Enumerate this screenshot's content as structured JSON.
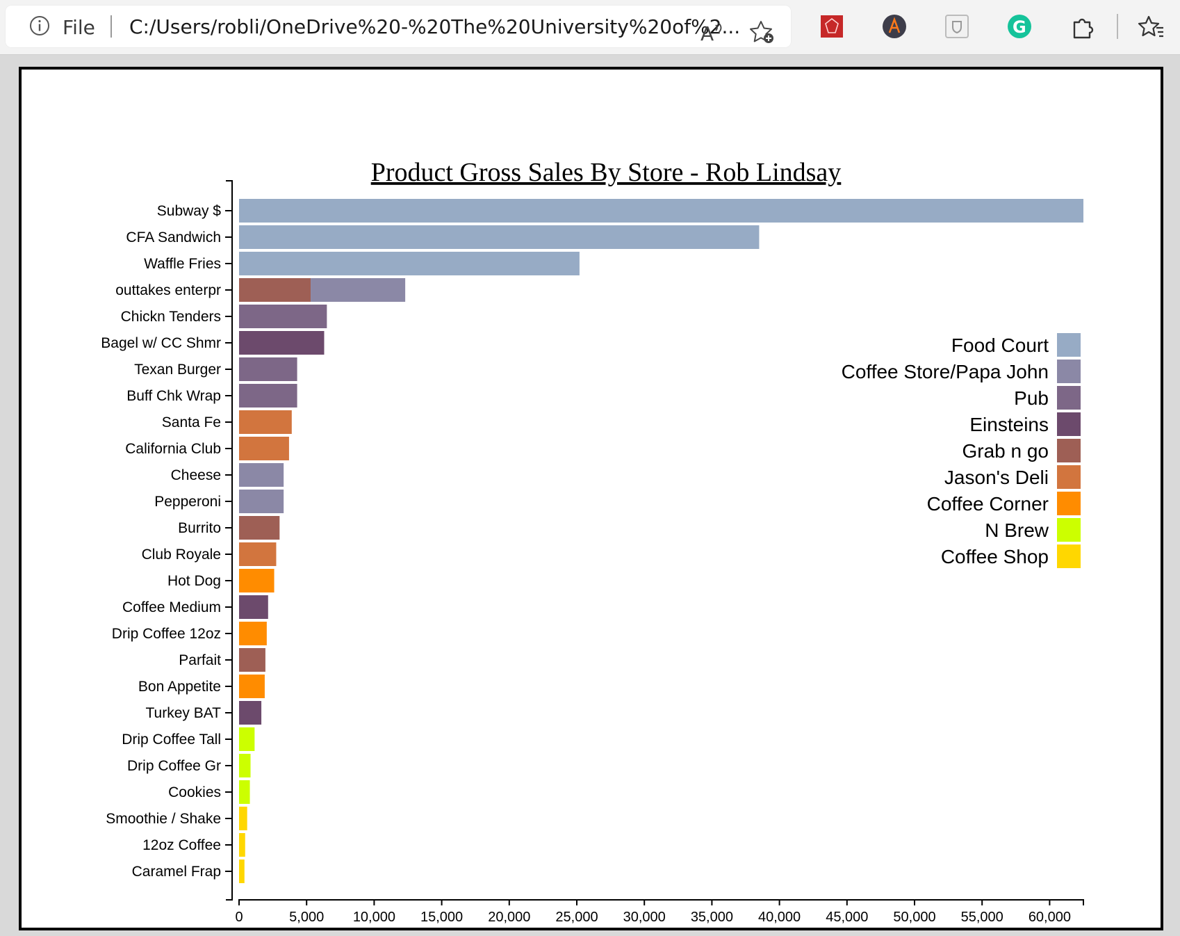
{
  "browser": {
    "file_label": "File",
    "url": "C:/Users/robli/OneDrive%20-%20The%20University%20of%2..."
  },
  "chart_data": {
    "type": "bar",
    "orientation": "horizontal",
    "stacked": true,
    "title": "Product Gross Sales By Store - Rob Lindsay",
    "xlabel": "",
    "ylabel": "",
    "xlim": [
      0,
      62500
    ],
    "xticks": [
      "0",
      "5,000",
      "10,000",
      "15,000",
      "20,000",
      "25,000",
      "30,000",
      "35,000",
      "40,000",
      "45,000",
      "50,000",
      "55,000",
      "60,000"
    ],
    "grid": false,
    "legend_position": "right",
    "legend": [
      {
        "name": "Food Court",
        "color": "#97abc5"
      },
      {
        "name": "Coffee Store/Papa John",
        "color": "#8b88a6"
      },
      {
        "name": "Pub",
        "color": "#7d6787"
      },
      {
        "name": "Einsteins",
        "color": "#6c4a6c"
      },
      {
        "name": "Grab n go",
        "color": "#9e5f55"
      },
      {
        "name": "Jason's Deli",
        "color": "#d2753e"
      },
      {
        "name": "Coffee Corner",
        "color": "#ff8c00"
      },
      {
        "name": "N Brew",
        "color": "#ccff00"
      },
      {
        "name": "Coffee Shop",
        "color": "#ffd700"
      }
    ],
    "bars": [
      {
        "label": "Subway $",
        "segments": [
          {
            "store": "Food Court",
            "value": 62500
          }
        ]
      },
      {
        "label": "CFA Sandwich",
        "segments": [
          {
            "store": "Food Court",
            "value": 38500
          }
        ]
      },
      {
        "label": "Waffle Fries",
        "segments": [
          {
            "store": "Food Court",
            "value": 25200
          }
        ]
      },
      {
        "label": "outtakes enterpr",
        "segments": [
          {
            "store": "Grab n go",
            "value": 5300
          },
          {
            "store": "Coffee Store/Papa John",
            "value": 7000
          }
        ]
      },
      {
        "label": "Chickn Tenders",
        "segments": [
          {
            "store": "Pub",
            "value": 6500
          }
        ]
      },
      {
        "label": "Bagel w/ CC Shmr",
        "segments": [
          {
            "store": "Einsteins",
            "value": 6300
          }
        ]
      },
      {
        "label": "Texan Burger",
        "segments": [
          {
            "store": "Pub",
            "value": 4300
          }
        ]
      },
      {
        "label": "Buff Chk Wrap",
        "segments": [
          {
            "store": "Pub",
            "value": 4300
          }
        ]
      },
      {
        "label": "Santa Fe",
        "segments": [
          {
            "store": "Jason's Deli",
            "value": 3900
          }
        ]
      },
      {
        "label": "California Club",
        "segments": [
          {
            "store": "Jason's Deli",
            "value": 3700
          }
        ]
      },
      {
        "label": "Cheese",
        "segments": [
          {
            "store": "Coffee Store/Papa John",
            "value": 3300
          }
        ]
      },
      {
        "label": "Pepperoni",
        "segments": [
          {
            "store": "Coffee Store/Papa John",
            "value": 3300
          }
        ]
      },
      {
        "label": "Burrito",
        "segments": [
          {
            "store": "Grab n go",
            "value": 3000
          }
        ]
      },
      {
        "label": "Club Royale",
        "segments": [
          {
            "store": "Jason's Deli",
            "value": 2750
          }
        ]
      },
      {
        "label": "Hot Dog",
        "segments": [
          {
            "store": "Coffee Corner",
            "value": 2600
          }
        ]
      },
      {
        "label": "Coffee Medium",
        "segments": [
          {
            "store": "Einsteins",
            "value": 2150
          }
        ]
      },
      {
        "label": "Drip Coffee 12oz",
        "segments": [
          {
            "store": "Coffee Corner",
            "value": 2050
          }
        ]
      },
      {
        "label": "Parfait",
        "segments": [
          {
            "store": "Grab n go",
            "value": 1950
          }
        ]
      },
      {
        "label": "Bon Appetite",
        "segments": [
          {
            "store": "Coffee Corner",
            "value": 1900
          }
        ]
      },
      {
        "label": "Turkey BAT",
        "segments": [
          {
            "store": "Einsteins",
            "value": 1650
          }
        ]
      },
      {
        "label": "Drip Coffee Tall",
        "segments": [
          {
            "store": "N Brew",
            "value": 1150
          }
        ]
      },
      {
        "label": "Drip Coffee Gr",
        "segments": [
          {
            "store": "N Brew",
            "value": 850
          }
        ]
      },
      {
        "label": "Cookies",
        "segments": [
          {
            "store": "N Brew",
            "value": 800
          }
        ]
      },
      {
        "label": "Smoothie / Shake",
        "segments": [
          {
            "store": "Coffee Shop",
            "value": 600
          }
        ]
      },
      {
        "label": "12oz Coffee",
        "segments": [
          {
            "store": "Coffee Shop",
            "value": 450
          }
        ]
      },
      {
        "label": "Caramel Frap",
        "segments": [
          {
            "store": "Coffee Shop",
            "value": 400
          }
        ]
      }
    ]
  }
}
